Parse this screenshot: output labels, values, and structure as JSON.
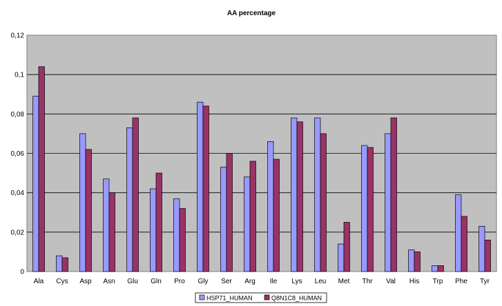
{
  "chart_data": {
    "type": "bar",
    "title": "AA percentage",
    "xlabel": "",
    "ylabel": "",
    "ylim": [
      0,
      0.12
    ],
    "yticks": [
      "0",
      "0,02",
      "0,04",
      "0,06",
      "0,08",
      "0,1",
      "0,12"
    ],
    "ytick_values": [
      0,
      0.02,
      0.04,
      0.06,
      0.08,
      0.1,
      0.12
    ],
    "grid": "horizontal",
    "legend_position": "bottom",
    "categories": [
      "Ala",
      "Cys",
      "Asp",
      "Asn",
      "Glu",
      "Gln",
      "Pro",
      "Gly",
      "Ser",
      "Arg",
      "Ile",
      "Lys",
      "Leu",
      "Met",
      "Thr",
      "Val",
      "His",
      "Trp",
      "Phe",
      "Tyr"
    ],
    "series": [
      {
        "name": "HSP71_HUMAN",
        "color": "#9999ff",
        "values": [
          0.089,
          0.008,
          0.07,
          0.047,
          0.073,
          0.042,
          0.037,
          0.086,
          0.053,
          0.048,
          0.066,
          0.078,
          0.078,
          0.014,
          0.064,
          0.07,
          0.011,
          0.003,
          0.039,
          0.023
        ]
      },
      {
        "name": "Q8N1C8_HUMAN",
        "color": "#993366",
        "values": [
          0.104,
          0.007,
          0.062,
          0.04,
          0.078,
          0.05,
          0.032,
          0.084,
          0.06,
          0.056,
          0.057,
          0.076,
          0.07,
          0.025,
          0.063,
          0.078,
          0.01,
          0.003,
          0.028,
          0.016
        ]
      }
    ],
    "plot_background": "#c0c0c0"
  }
}
